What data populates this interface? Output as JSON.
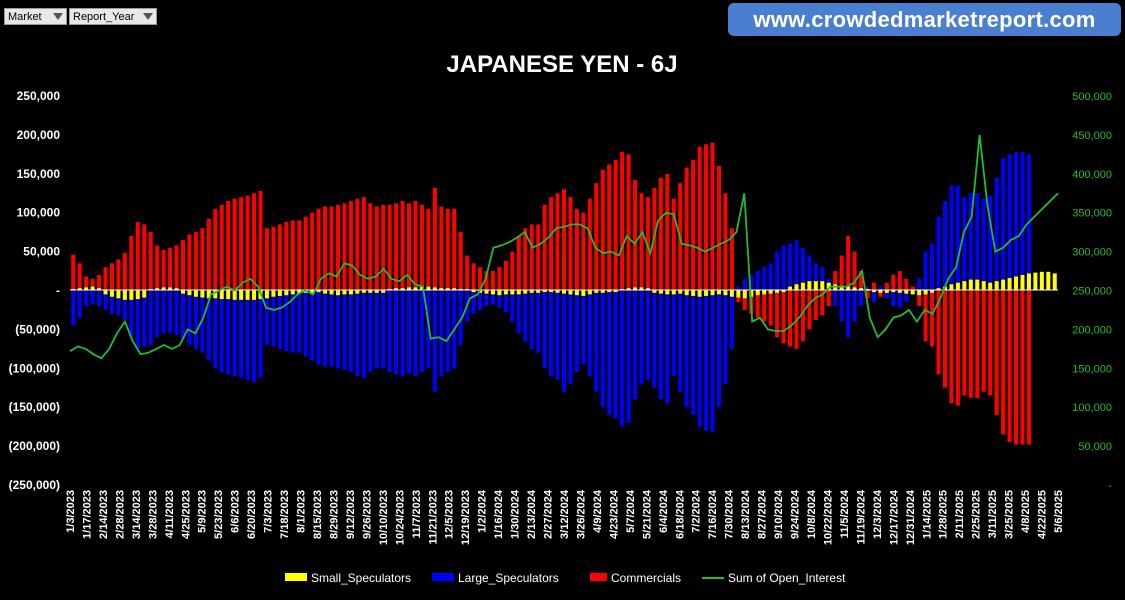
{
  "filters": [
    {
      "label": "Market"
    },
    {
      "label": "Report_Year"
    }
  ],
  "banner": {
    "url": "www.crowdedmarketreport.com"
  },
  "chart_data": {
    "type": "bar",
    "title": "JAPANESE YEN - 6J",
    "left_axis": {
      "ylim": [
        -250000,
        250000
      ],
      "ticks": [
        "250,000",
        "200,000",
        "150,000",
        "100,000",
        "50,000",
        "-",
        "(50,000)",
        "(100,000)",
        "(150,000)",
        "(200,000)",
        "(250,000)"
      ]
    },
    "right_axis": {
      "ylim": [
        0,
        500000
      ],
      "ticks": [
        "500,000",
        "450,000",
        "400,000",
        "350,000",
        "300,000",
        "250,000",
        "200,000",
        "150,000",
        "100,000",
        "50,000",
        "-"
      ]
    },
    "x_tick_labels": [
      "1/3/2023",
      "1/17/2023",
      "2/14/2023",
      "2/28/2023",
      "3/14/2023",
      "3/28/2023",
      "4/11/2023",
      "4/25/2023",
      "5/9/2023",
      "5/23/2023",
      "6/6/2023",
      "6/20/2023",
      "7/3/2023",
      "7/18/2023",
      "8/1/2023",
      "8/15/2023",
      "8/29/2023",
      "9/12/2023",
      "9/26/2023",
      "10/10/2023",
      "10/24/2023",
      "11/7/2023",
      "11/21/2023",
      "12/5/2023",
      "12/19/2023",
      "1/2/2024",
      "1/16/2024",
      "1/30/2024",
      "2/13/2024",
      "2/27/2024",
      "3/12/2024",
      "3/26/2024",
      "4/9/2024",
      "4/23/2024",
      "5/7/2024",
      "5/21/2024",
      "6/4/2024",
      "6/18/2024",
      "7/2/2024",
      "7/16/2024",
      "7/30/2024",
      "8/13/2024",
      "8/27/2024",
      "9/10/2024",
      "9/24/2024",
      "10/8/2024",
      "10/22/2024",
      "11/5/2024",
      "11/19/2024",
      "12/3/2024",
      "12/17/2024",
      "12/31/2024",
      "1/14/2025",
      "1/28/2025",
      "2/11/2025",
      "2/25/2025",
      "3/11/2025",
      "3/25/2025",
      "4/8/2025",
      "4/22/2025",
      "5/6/2025"
    ],
    "legend_position": "bottom",
    "series": [
      {
        "name": "Small_Speculators",
        "type": "bar",
        "axis": "left",
        "color": "#ffff00",
        "values": [
          2000,
          3000,
          4000,
          5000,
          3000,
          -5000,
          -8000,
          -10000,
          -12000,
          -12000,
          -11000,
          -9000,
          2000,
          3000,
          4000,
          4000,
          3000,
          -4000,
          -6000,
          -8000,
          -9000,
          -10000,
          -10000,
          -11000,
          -11000,
          -12000,
          -12000,
          -12000,
          -12000,
          -11000,
          -10000,
          -8000,
          -7000,
          -6000,
          -5000,
          -4000,
          -3000,
          -3000,
          -2000,
          -4000,
          -5000,
          -6000,
          -5000,
          -5000,
          -4000,
          -3000,
          -3000,
          -3000,
          -3000,
          2000,
          3000,
          3000,
          4000,
          4000,
          5000,
          5000,
          4000,
          3000,
          3000,
          3000,
          2000,
          2000,
          -2000,
          -3000,
          -4000,
          -5000,
          -6000,
          -5000,
          -5000,
          -5000,
          -4000,
          -3000,
          -3000,
          -2000,
          -2000,
          -3000,
          -4000,
          -5000,
          -6000,
          -7000,
          -5000,
          -3000,
          -3000,
          -2000,
          -2000,
          2000,
          3000,
          4000,
          4000,
          3000,
          -3000,
          -4000,
          -5000,
          -5000,
          -4000,
          -6000,
          -7000,
          -8000,
          -7000,
          -6000,
          -5000,
          -6000,
          -8000,
          -9000,
          -10000,
          -8000,
          -6000,
          -5000,
          -4000,
          -3000,
          -2000,
          5000,
          8000,
          10000,
          12000,
          12000,
          12000,
          10000,
          8000,
          6000,
          5000,
          4000,
          3000,
          2000,
          -2000,
          -3000,
          -3000,
          -2000,
          -3000,
          -4000,
          -5000,
          -6000,
          -5000,
          -3000,
          3000,
          5000,
          8000,
          10000,
          12000,
          14000,
          14000,
          12000,
          10000,
          12000,
          14000,
          16000,
          18000,
          20000,
          22000,
          23000,
          24000,
          24000,
          22000
        ]
      },
      {
        "name": "Large_Speculators",
        "type": "bar",
        "axis": "left",
        "color": "#0000ff",
        "values": [
          -45000,
          -35000,
          -20000,
          -18000,
          -20000,
          -25000,
          -30000,
          -32000,
          -38000,
          -60000,
          -75000,
          -72000,
          -70000,
          -60000,
          -55000,
          -55000,
          -57000,
          -62000,
          -70000,
          -75000,
          -80000,
          -90000,
          -100000,
          -105000,
          -108000,
          -110000,
          -112000,
          -115000,
          -118000,
          -112000,
          -70000,
          -72000,
          -75000,
          -78000,
          -80000,
          -80000,
          -85000,
          -90000,
          -95000,
          -98000,
          -98000,
          -100000,
          -102000,
          -105000,
          -110000,
          -112000,
          -105000,
          -100000,
          -100000,
          -105000,
          -108000,
          -110000,
          -107000,
          -110000,
          -105000,
          -100000,
          -130000,
          -110000,
          -105000,
          -100000,
          -70000,
          -40000,
          -30000,
          -25000,
          -20000,
          -18000,
          -22000,
          -28000,
          -40000,
          -55000,
          -65000,
          -75000,
          -80000,
          -100000,
          -110000,
          -115000,
          -130000,
          -120000,
          -105000,
          -95000,
          -110000,
          -130000,
          -150000,
          -160000,
          -165000,
          -175000,
          -170000,
          -140000,
          -120000,
          -115000,
          -125000,
          -140000,
          -145000,
          -110000,
          -130000,
          -150000,
          -160000,
          -175000,
          -180000,
          -182000,
          -150000,
          -120000,
          -75000,
          5000,
          15000,
          20000,
          25000,
          30000,
          35000,
          50000,
          58000,
          60000,
          65000,
          55000,
          45000,
          35000,
          30000,
          15000,
          -20000,
          -40000,
          -60000,
          -40000,
          -20000,
          5000,
          -15000,
          5000,
          -10000,
          -20000,
          -22000,
          -15000,
          -5000,
          15000,
          50000,
          60000,
          95000,
          115000,
          135000,
          135000,
          120000,
          125000,
          125000,
          118000,
          122000,
          145000,
          170000,
          175000,
          178000,
          178000,
          175000
        ]
      },
      {
        "name": "Commercials",
        "type": "bar",
        "axis": "left",
        "color": "#ff0000",
        "values": [
          46000,
          35000,
          18000,
          15000,
          20000,
          30000,
          35000,
          40000,
          48000,
          70000,
          88000,
          85000,
          75000,
          58000,
          52000,
          55000,
          58000,
          65000,
          72000,
          75000,
          80000,
          92000,
          105000,
          110000,
          115000,
          118000,
          120000,
          122000,
          125000,
          128000,
          80000,
          82000,
          85000,
          88000,
          90000,
          90000,
          95000,
          100000,
          105000,
          108000,
          108000,
          110000,
          112000,
          115000,
          118000,
          120000,
          112000,
          108000,
          110000,
          110000,
          112000,
          115000,
          112000,
          115000,
          110000,
          105000,
          132000,
          108000,
          105000,
          105000,
          75000,
          45000,
          35000,
          30000,
          25000,
          25000,
          30000,
          38000,
          50000,
          70000,
          80000,
          85000,
          85000,
          110000,
          120000,
          125000,
          130000,
          120000,
          105000,
          100000,
          118000,
          138000,
          155000,
          162000,
          168000,
          178000,
          175000,
          142000,
          125000,
          120000,
          132000,
          145000,
          150000,
          118000,
          138000,
          158000,
          168000,
          185000,
          188000,
          190000,
          160000,
          125000,
          80000,
          -15000,
          -25000,
          -30000,
          -35000,
          -40000,
          -45000,
          -60000,
          -68000,
          -72000,
          -75000,
          -65000,
          -50000,
          -38000,
          -32000,
          -20000,
          25000,
          45000,
          70000,
          50000,
          25000,
          -10000,
          10000,
          -8000,
          10000,
          20000,
          25000,
          15000,
          5000,
          -20000,
          -65000,
          -72000,
          -108000,
          -125000,
          -145000,
          -148000,
          -135000,
          -138000,
          -138000,
          -130000,
          -135000,
          -160000,
          -185000,
          -195000,
          -198000,
          -198000,
          -198000
        ]
      },
      {
        "name": "Sum of Open_Interest",
        "type": "line",
        "axis": "right",
        "color": "#22bb33",
        "values": [
          172000,
          178000,
          175000,
          168000,
          163000,
          175000,
          195000,
          210000,
          185000,
          168000,
          170000,
          175000,
          180000,
          175000,
          180000,
          200000,
          195000,
          215000,
          245000,
          250000,
          255000,
          250000,
          260000,
          265000,
          255000,
          228000,
          225000,
          228000,
          235000,
          245000,
          250000,
          245000,
          265000,
          272000,
          268000,
          285000,
          282000,
          270000,
          265000,
          268000,
          278000,
          265000,
          262000,
          270000,
          258000,
          255000,
          188000,
          190000,
          185000,
          200000,
          215000,
          240000,
          245000,
          265000,
          305000,
          308000,
          312000,
          318000,
          325000,
          305000,
          310000,
          318000,
          330000,
          332000,
          335000,
          335000,
          330000,
          305000,
          298000,
          300000,
          295000,
          320000,
          310000,
          325000,
          298000,
          340000,
          350000,
          348000,
          310000,
          308000,
          305000,
          300000,
          305000,
          310000,
          315000,
          325000,
          375000,
          210000,
          215000,
          200000,
          198000,
          198000,
          205000,
          215000,
          230000,
          240000,
          245000,
          255000,
          255000,
          255000,
          260000,
          275000,
          215000,
          190000,
          200000,
          215000,
          218000,
          225000,
          210000,
          225000,
          220000,
          240000,
          265000,
          280000,
          325000,
          345000,
          450000,
          360000,
          300000,
          305000,
          315000,
          320000,
          335000,
          345000,
          355000,
          365000,
          375000
        ]
      }
    ]
  }
}
